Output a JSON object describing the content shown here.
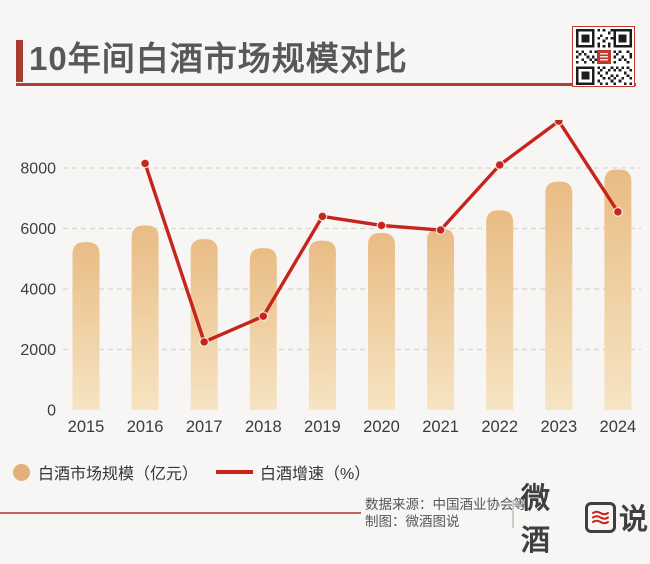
{
  "header": {
    "title": "10年间白酒市场规模对比"
  },
  "chart_data": {
    "type": "bar+line",
    "title": "10年间白酒市场规模对比",
    "categories": [
      "2015",
      "2016",
      "2017",
      "2018",
      "2019",
      "2020",
      "2021",
      "2022",
      "2023",
      "2024"
    ],
    "series": [
      {
        "name": "白酒市场规模（亿元）",
        "chart": "bar",
        "color": "#e8bb83",
        "values": [
          5550,
          6100,
          5650,
          5350,
          5600,
          5850,
          6000,
          6600,
          7550,
          7950
        ]
      },
      {
        "name": "白酒增速（%）",
        "chart": "line",
        "color": "#c5251c",
        "values": [
          null,
          8150,
          2250,
          3100,
          6400,
          6100,
          5950,
          8100,
          9550,
          6550
        ],
        "axis_note": "line plotted in left-axis units; no secondary percent axis shown"
      }
    ],
    "ylim": [
      0,
      9800
    ],
    "yticks": [
      0,
      2000,
      4000,
      6000,
      8000
    ],
    "grid": "horizontal dashed",
    "legend_position": "bottom-left"
  },
  "legend": {
    "items": [
      {
        "label": "白酒市场规模（亿元）",
        "swatch": "circle",
        "color": "#e2b07a"
      },
      {
        "label": "白酒增速（%）",
        "swatch": "line",
        "color": "#c5251c"
      }
    ]
  },
  "footer": {
    "source": "数据来源：中国酒业协会等",
    "credit": "制图：微酒图说",
    "logo": {
      "prefix": "微酒",
      "boxed_char": "图",
      "suffix": "说"
    }
  },
  "colors": {
    "background": "#f7f6f4",
    "accent_red": "#a83a30",
    "line_red": "#c5251c",
    "bar_top": "#e9bc84",
    "bar_bottom": "#f6e4c3",
    "grid": "#d7d5d2",
    "tick_text": "#3e3e3e"
  }
}
